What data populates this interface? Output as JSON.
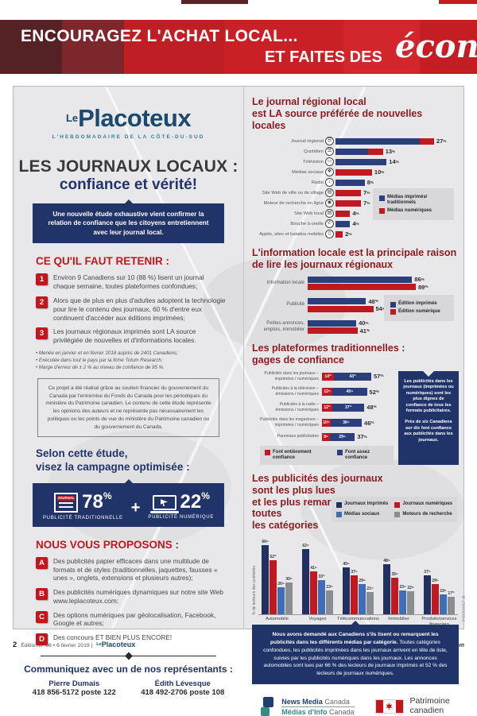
{
  "banner": {
    "line1": "ENCOURAGEZ L'ACHAT LOCAL...",
    "line2": "ET FAITES DES",
    "script": "écono"
  },
  "logo": {
    "le": "Le",
    "name": "Placoteux",
    "tagline": "L'HEBDOMADAIRE DE LA CÔTE-DU-SUD"
  },
  "left": {
    "title1": "LES JOURNAUX LOCAUX :",
    "title2": "confiance et vérité!",
    "intro": "Une nouvelle étude exhaustive vient confirmer la relation de confiance que les citoyens entretiennent avec leur journal local.",
    "retenir_heading": "CE QU'IL FAUT RETENIR :",
    "retenir_items": [
      {
        "num": "1",
        "text": "Environ 9 Canadiens sur 10 (88 %) lisent un journal chaque semaine, toutes plateformes confondues;"
      },
      {
        "num": "2",
        "text": "Alors que de plus en plus d'adultes adoptent la technologie pour lire le contenu des journaux, 60 % d'entre eux continuent d'accéder aux éditions imprimées;"
      },
      {
        "num": "3",
        "text": "Les journaux régionaux imprimés sont LA source privilégiée de nouvelles et d'informations locales."
      }
    ],
    "footnotes": [
      "Menée en janvier et en février 2018 auprès de 2401 Canadiens;",
      "Exécutée dans tout le pays par la firme Totum Research;",
      "Marge d'erreur de ± 2 % au niveau de confiance de 95 %."
    ],
    "disclaimer": "Ce projet a été réalisé grâce au soutien financier du gouvernement du Canada par l'entremise du Fonds du Canada pour les périodiques du ministère du Patrimoine canadien. Le contenu de cette étude représente les opinions des auteurs et ne représente pas nécessairement les politiques ou les points de vue du ministère du Patrimoine canadien ou du gouvernement du Canada.",
    "campaign": {
      "heading1": "Selon cette étude,",
      "heading2": "visez la campagne optimisée :",
      "journal_tag": "JOURNAL",
      "stat1": "78",
      "stat1_label": "PUBLICITÉ TRADITIONNELLE",
      "plus": "+",
      "stat2": "22",
      "stat2_label": "PUBLICITÉ NUMÉRIQUE",
      "unit": "%"
    },
    "proposons_heading": "NOUS VOUS PROPOSONS :",
    "proposons_items": [
      {
        "num": "A",
        "text": "Des publicités papier efficaces dans une multitude de formats et de styles (traditionnelles, jaquettes, fausses « unes », onglets, extensions et plusieurs autres);"
      },
      {
        "num": "B",
        "text": "Des publicités numériques dynamiques sur notre site Web www.leplacoteux.com;"
      },
      {
        "num": "C",
        "text": "Des options numériques par géolocalisation, Facebook, Google et autres;"
      },
      {
        "num": "D",
        "text": "Des concours ET BIEN PLUS ENCORE!"
      }
    ],
    "contact_heading": "Communiquez avec un de nos représentants :",
    "contacts": [
      {
        "name": "Pierre Dumais",
        "phone": "418 856-5172 poste 122"
      },
      {
        "name": "Édith Lévesque",
        "phone": "418 492-2706 poste 108"
      }
    ]
  },
  "chart_data": [
    {
      "type": "bar",
      "orientation": "horizontal",
      "unit": "%",
      "title": "Le journal régional local est LA source préférée de nouvelles locales",
      "title_lines": [
        "Le journal régional local",
        "est LA source préférée de nouvelles locales"
      ],
      "xmax": 27,
      "bars": [
        {
          "label": "Journal régional",
          "value": 27,
          "split": [
            [
              "bar_blue",
              23
            ],
            [
              "bar_red",
              4
            ]
          ],
          "icon": "newspaper-icon",
          "glyph": "☰"
        },
        {
          "label": "Quotidien",
          "value": 13,
          "split": [
            [
              "bar_blue",
              9
            ],
            [
              "bar_red",
              4
            ]
          ],
          "icon": "newspaper-icon",
          "glyph": "☰"
        },
        {
          "label": "Télévision",
          "value": 14,
          "split": [
            [
              "bar_blue",
              14
            ]
          ],
          "icon": "tv-icon",
          "glyph": "▭"
        },
        {
          "label": "Médias sociaux",
          "value": 10,
          "split": [
            [
              "bar_red",
              10
            ]
          ],
          "icon": "social-share-icon",
          "glyph": "❖"
        },
        {
          "label": "Radio",
          "value": 8,
          "split": [
            [
              "bar_blue",
              8
            ]
          ],
          "icon": "radio-icon",
          "glyph": "♪"
        },
        {
          "label": "Site Web de ville ou de village",
          "value": 7,
          "split": [
            [
              "bar_red",
              7
            ]
          ],
          "icon": "website-icon",
          "glyph": "▤"
        },
        {
          "label": "Moteur de recherche en ligne",
          "value": 7,
          "split": [
            [
              "bar_red",
              7
            ]
          ],
          "icon": "search-icon",
          "glyph": "◉"
        },
        {
          "label": "Site Web local",
          "value": 4,
          "split": [
            [
              "bar_red",
              4
            ]
          ],
          "icon": "website-icon",
          "glyph": "▤"
        },
        {
          "label": "Bouche à oreille",
          "value": 4,
          "split": [
            [
              "bar_blue",
              4
            ]
          ],
          "icon": "word-of-mouth-icon",
          "glyph": "✆"
        },
        {
          "label": "Applis, sites et balados mobiles",
          "value": 2,
          "split": [
            [
              "bar_red",
              2
            ]
          ],
          "icon": "mobile-icon",
          "glyph": "▯"
        }
      ],
      "legend": [
        {
          "lines": [
            "Médias imprimés/",
            "traditionnels"
          ],
          "color": "bar_blue"
        },
        {
          "lines": [
            "Médias numériques"
          ],
          "color": "bar_red"
        }
      ]
    },
    {
      "type": "bar",
      "orientation": "horizontal",
      "grouped": true,
      "unit": "%",
      "title": "L'information locale est la principale raison de lire les journaux régionaux",
      "title_lines": [
        "L'information locale est la principale raison",
        "de lire les journaux régionaux"
      ],
      "xmax": 89,
      "categories": [
        [
          "Information locale"
        ],
        [
          "Publicité"
        ],
        [
          "Petites annonces,",
          "emplois, immobilier"
        ]
      ],
      "series": [
        {
          "name": "Édition imprimée",
          "color": "bar_blue",
          "values": [
            86,
            48,
            40
          ]
        },
        {
          "name": "Édition numérique",
          "color": "bar_red",
          "values": [
            89,
            54,
            41
          ]
        }
      ],
      "legend": [
        {
          "lines": [
            "Édition imprimée"
          ],
          "color": "bar_blue"
        },
        {
          "lines": [
            "Édition numérique"
          ],
          "color": "bar_red"
        }
      ]
    },
    {
      "type": "bar",
      "orientation": "horizontal",
      "stacked": true,
      "unit": "%",
      "title": "Les plateformes traditionnelles : gages de confiance",
      "title_lines": [
        "Les plateformes traditionnelles :",
        "gages de confiance"
      ],
      "xmax": 57,
      "categories": [
        [
          "Publicités dans les journaux –",
          "imprimées / numériques"
        ],
        [
          "Publicités à la télévision –",
          "émissions / numériques"
        ],
        [
          "Publicités à la radio –",
          "émissions / numériques"
        ],
        [
          "Publicités dans les magazines –",
          "imprimées / numériques"
        ],
        [
          "Panneaux publicitaires"
        ]
      ],
      "series": [
        {
          "name": "Font entièrement confiance",
          "color": "bar_red",
          "values": [
            14,
            12,
            12,
            10,
            9
          ]
        },
        {
          "name": "Font assez confiance",
          "color": "bar_blue",
          "values": [
            43,
            40,
            37,
            36,
            29
          ]
        }
      ],
      "totals": [
        57,
        52,
        48,
        46,
        37
      ],
      "legend": [
        {
          "lines": [
            "Font entièrement confiance"
          ],
          "color": "bar_red"
        },
        {
          "lines": [
            "Font assez confiance"
          ],
          "color": "bar_blue"
        }
      ],
      "note_paragraphs": [
        "Les publicités dans les journaux (imprimées ou numériques) sont les plus dignes de confiance de tous les formats publicitaires.",
        "Près de six Canadiens sur dix font confiance aux publicités dans les journaux."
      ]
    },
    {
      "type": "bar",
      "orientation": "vertical",
      "grouped": true,
      "unit": "%",
      "title": "Les publicités des journaux sont les plus lues et les plus remarquées dans toutes les catégories",
      "title_lines": [
        "Les publicités des journaux sont les plus lues",
        "et les plus remarquées dans toutes",
        "les catégories"
      ],
      "ylabel": "% de lecteurs des publicités",
      "ymax": 70,
      "categories": [
        [
          "Automobile"
        ],
        [
          "Voyages"
        ],
        [
          "Télécommunications"
        ],
        [
          "Immobilier"
        ],
        [
          "Produits/services",
          "financiers"
        ]
      ],
      "series": [
        {
          "name": "Journaux imprimés",
          "color": "navy_bar",
          "values": [
            66,
            62,
            45,
            48,
            37
          ]
        },
        {
          "name": "Journaux numériques",
          "color": "bar_red",
          "values": [
            52,
            41,
            37,
            35,
            29
          ]
        },
        {
          "name": "Médias sociaux",
          "color": "light_blue",
          "values": [
            26,
            33,
            29,
            23,
            19
          ]
        },
        {
          "name": "Moteurs de recherche",
          "color": "gray_bar",
          "values": [
            30,
            23,
            21,
            22,
            17
          ]
        }
      ],
      "legend": [
        {
          "lines": [
            "Journaux imprimés"
          ],
          "color": "navy_bar"
        },
        {
          "lines": [
            "Journaux numériques"
          ],
          "color": "bar_red"
        },
        {
          "lines": [
            "Médias sociaux"
          ],
          "color": "light_blue"
        },
        {
          "lines": [
            "Moteurs de recherche"
          ],
          "color": "gray_bar"
        }
      ]
    }
  ],
  "bottom_note": {
    "bold": "Nous avons demandé aux Canadiens s'ils lisent ou remarquent les publicités dans les différents médias par catégorie.",
    "rest": " Toutes catégories confondues, les publicités imprimées dans les journaux arrivent en tête de liste, suivies par les publicités numériques dans les journaux. Les annonces automobiles sont lues par 66 % des lecteurs de journaux imprimés et 52 % des lecteurs de journaux numériques."
  },
  "logos": {
    "nm_bold": "News Media",
    "nm_light": "Canada",
    "mi_bold": "Médias d'Info",
    "mi_light": "Canada",
    "pat1": "Patrimoine",
    "pat2": "canadien"
  },
  "side_code": "P0060067-B",
  "footer": {
    "page": "2",
    "edition": "Édition n° 06 • 6 février 2019 |",
    "brand_le": "Le",
    "brand": "Placoteux",
    "right": "Au quotidien sur leplacoteux.com"
  },
  "colors": {
    "bar_blue": "#2b3f7d",
    "bar_red": "#c0191f",
    "navy_bar": "#203060",
    "light_blue": "#3e6eb5",
    "gray_bar": "#8a8d91",
    "navy": "#21346a",
    "heading_red": "#c3161c",
    "chart_title": "#8c1b1f"
  }
}
